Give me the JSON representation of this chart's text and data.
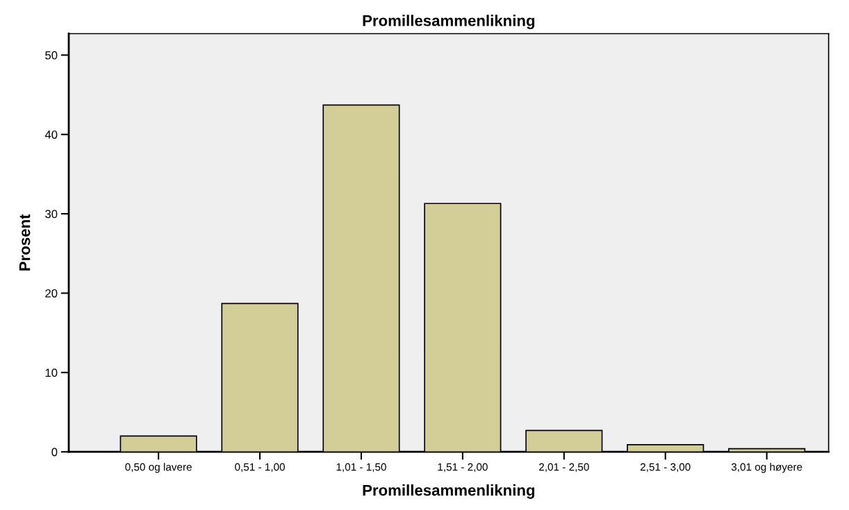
{
  "chart_data": {
    "type": "bar",
    "title": "Promillesammenlikning",
    "xlabel": "Promillesammenlikning",
    "ylabel": "Prosent",
    "categories": [
      "0,50 og lavere",
      "0,51 - 1,00",
      "1,01 - 1,50",
      "1,51 - 2,00",
      "2,01 - 2,50",
      "2,51 - 3,00",
      "3,01 og høyere"
    ],
    "values": [
      2.0,
      18.7,
      43.7,
      31.3,
      2.7,
      0.9,
      0.4
    ],
    "color": "#d3ce97",
    "ylim": [
      0,
      52.7
    ],
    "yticks": [
      0,
      10,
      20,
      30,
      40,
      50
    ],
    "grid": false
  }
}
